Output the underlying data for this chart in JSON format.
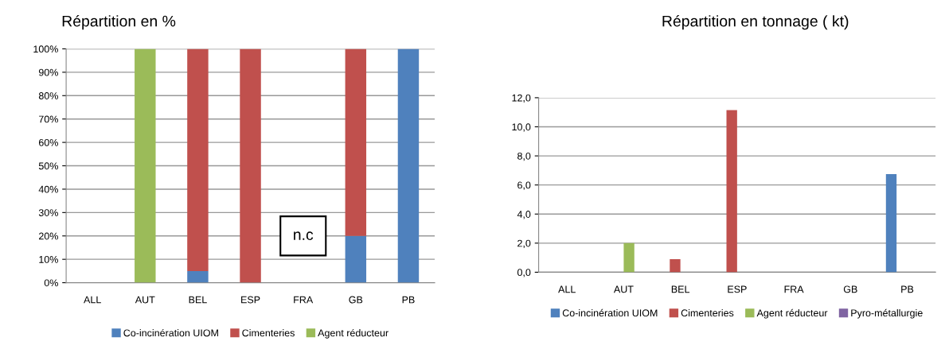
{
  "chart_data": [
    {
      "type": "bar",
      "title": "Répartition en %",
      "stacked": true,
      "categories": [
        "ALL",
        "AUT",
        "BEL",
        "ESP",
        "FRA",
        "GB",
        "PB"
      ],
      "series": [
        {
          "name": "Co-incinération UIOM",
          "color": "#4f81bd",
          "values": [
            null,
            null,
            5,
            null,
            null,
            20,
            100
          ]
        },
        {
          "name": "Cimenteries",
          "color": "#c0504d",
          "values": [
            null,
            null,
            95,
            100,
            null,
            80,
            null
          ]
        },
        {
          "name": "Agent réducteur",
          "color": "#9bbb59",
          "values": [
            null,
            100,
            null,
            null,
            null,
            null,
            null
          ]
        }
      ],
      "ylim": [
        0,
        100
      ],
      "yticks": [
        {
          "value": 0,
          "label": "0%"
        },
        {
          "value": 10,
          "label": "10%"
        },
        {
          "value": 20,
          "label": "20%"
        },
        {
          "value": 30,
          "label": "30%"
        },
        {
          "value": 40,
          "label": "40%"
        },
        {
          "value": 50,
          "label": "50%"
        },
        {
          "value": 60,
          "label": "60%"
        },
        {
          "value": 70,
          "label": "70%"
        },
        {
          "value": 80,
          "label": "80%"
        },
        {
          "value": 90,
          "label": "90%"
        },
        {
          "value": 100,
          "label": "100%"
        }
      ],
      "grid": "y",
      "legend": "bottom",
      "annotations": [
        "n.c"
      ]
    },
    {
      "type": "bar",
      "title": "Répartition en tonnage ( kt)",
      "categories": [
        "ALL",
        "AUT",
        "BEL",
        "ESP",
        "FRA",
        "GB",
        "PB"
      ],
      "series": [
        {
          "name": "Co-incinération UIOM",
          "color": "#4f81bd",
          "values": [
            null,
            null,
            null,
            null,
            null,
            null,
            6.75
          ]
        },
        {
          "name": "Cimenteries",
          "color": "#c0504d",
          "values": [
            null,
            null,
            0.9,
            11.15,
            null,
            null,
            null
          ]
        },
        {
          "name": "Agent réducteur",
          "color": "#9bbb59",
          "values": [
            null,
            2.0,
            null,
            null,
            null,
            null,
            null
          ]
        },
        {
          "name": "Pyro-métallurgie",
          "color": "#8064a2",
          "values": [
            null,
            null,
            null,
            null,
            null,
            null,
            null
          ]
        }
      ],
      "ylim": [
        0,
        12
      ],
      "yticks": [
        {
          "value": 0,
          "label": "0,0"
        },
        {
          "value": 2,
          "label": "2,0"
        },
        {
          "value": 4,
          "label": "4,0"
        },
        {
          "value": 6,
          "label": "6,0"
        },
        {
          "value": 8,
          "label": "8,0"
        },
        {
          "value": 10,
          "label": "10,0"
        },
        {
          "value": 12,
          "label": "12,0"
        }
      ],
      "grid": "y",
      "legend": "bottom"
    }
  ]
}
